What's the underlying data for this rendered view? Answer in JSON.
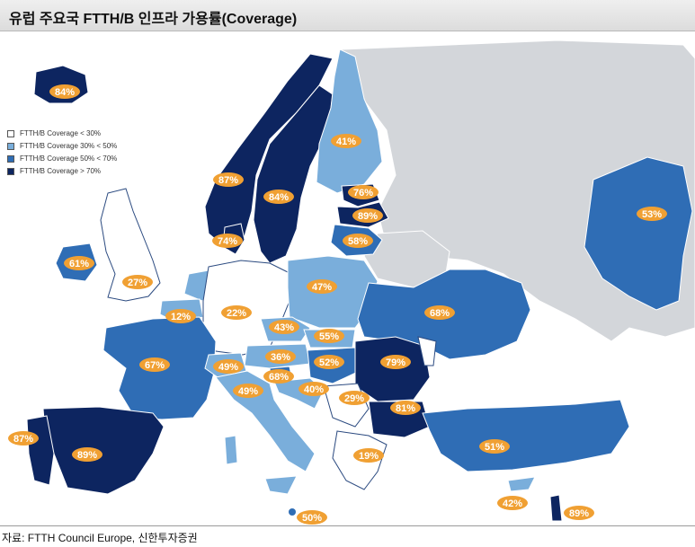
{
  "title": "유럽 주요국 FTTH/B 인프라 가용률(Coverage)",
  "source": "자료: FTTH Council Europe, 신한투자증권",
  "colors": {
    "cov_lt30": "#ffffff",
    "cov_30_50": "#7aaedb",
    "cov_50_70": "#2f6db5",
    "cov_gt70": "#0d2560",
    "no_data": "#d3d6da",
    "sea": "#ffffff",
    "badge": "#f0a033"
  },
  "legend": [
    {
      "label": "FTTH/B Coverage < 30%",
      "color": "#ffffff"
    },
    {
      "label": "FTTH/B Coverage 30% < 50%",
      "color": "#7aaedb"
    },
    {
      "label": "FTTH/B Coverage 50% < 70%",
      "color": "#2f6db5"
    },
    {
      "label": "FTTH/B Coverage > 70%",
      "color": "#0d2560"
    }
  ],
  "badges": {
    "iceland": "84%",
    "norway": "87%",
    "sweden": "84%",
    "finland": "41%",
    "estonia": "76%",
    "latvia": "89%",
    "lithuania": "58%",
    "denmark": "74%",
    "ireland": "61%",
    "uk": "27%",
    "netherlands": "12%",
    "germany": "22%",
    "poland": "47%",
    "russia": "53%",
    "ukraine": "68%",
    "czech": "43%",
    "slovakia": "55%",
    "france": "67%",
    "switzerland": "49%",
    "austria": "36%",
    "hungary": "52%",
    "romania": "79%",
    "slovenia": "68%",
    "croatia": "40%",
    "italy": "49%",
    "serbia": "29%",
    "bulgaria": "81%",
    "portugal": "87%",
    "spain": "89%",
    "greece": "19%",
    "turkey": "51%",
    "malta": "50%",
    "cyprus": "42%",
    "israel": "89%"
  }
}
